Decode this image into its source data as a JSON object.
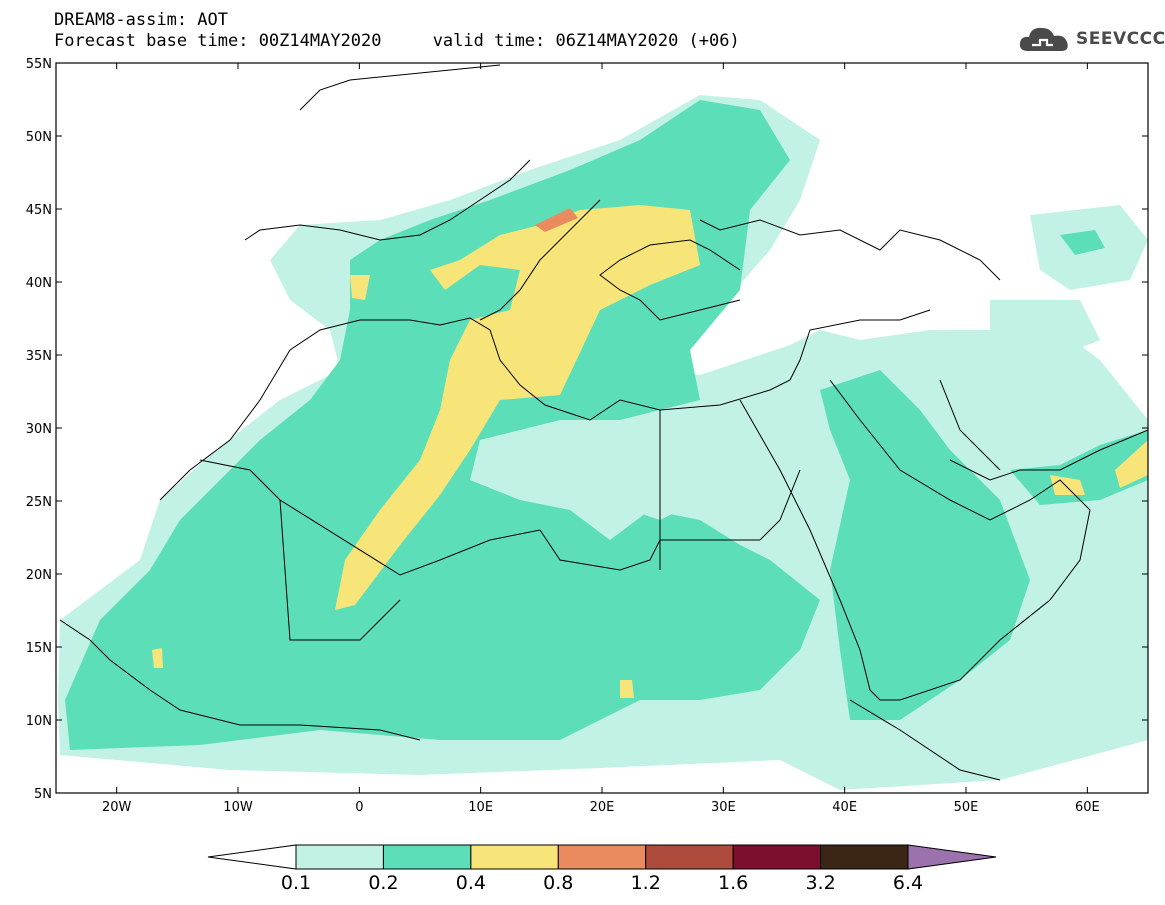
{
  "header": {
    "line1": "DREAM8-assim: AOT",
    "line2": "Forecast base time: 00Z14MAY2020     valid time: 06Z14MAY2020 (+06)"
  },
  "logo": {
    "text": "SEEVCCC",
    "icon": "cloud-icon",
    "color": "#4a4a4a"
  },
  "map": {
    "lon_range": [
      -25,
      65
    ],
    "lat_range": [
      5,
      55
    ],
    "lat_ticks": [
      {
        "value": 55,
        "label": "55N"
      },
      {
        "value": 50,
        "label": "50N"
      },
      {
        "value": 45,
        "label": "45N"
      },
      {
        "value": 40,
        "label": "40N"
      },
      {
        "value": 35,
        "label": "35N"
      },
      {
        "value": 30,
        "label": "30N"
      },
      {
        "value": 25,
        "label": "25N"
      },
      {
        "value": 20,
        "label": "20N"
      },
      {
        "value": 15,
        "label": "15N"
      },
      {
        "value": 10,
        "label": "10N"
      },
      {
        "value": 5,
        "label": "5N"
      }
    ],
    "lon_ticks": [
      {
        "value": -20,
        "label": "20W"
      },
      {
        "value": -10,
        "label": "10W"
      },
      {
        "value": 0,
        "label": "0"
      },
      {
        "value": 10,
        "label": "10E"
      },
      {
        "value": 20,
        "label": "20E"
      },
      {
        "value": 30,
        "label": "30E"
      },
      {
        "value": 40,
        "label": "40E"
      },
      {
        "value": 50,
        "label": "50E"
      },
      {
        "value": 60,
        "label": "60E"
      }
    ]
  },
  "colorbar": {
    "levels": [
      "0.1",
      "0.2",
      "0.4",
      "0.8",
      "1.2",
      "1.6",
      "3.2",
      "6.4"
    ],
    "colors": [
      "#ffffff",
      "#c2f1e6",
      "#5cdfb8",
      "#f8e57a",
      "#e98a5f",
      "#ad4b3d",
      "#7a0e2c",
      "#3b2616",
      "#9b72ae"
    ]
  }
}
